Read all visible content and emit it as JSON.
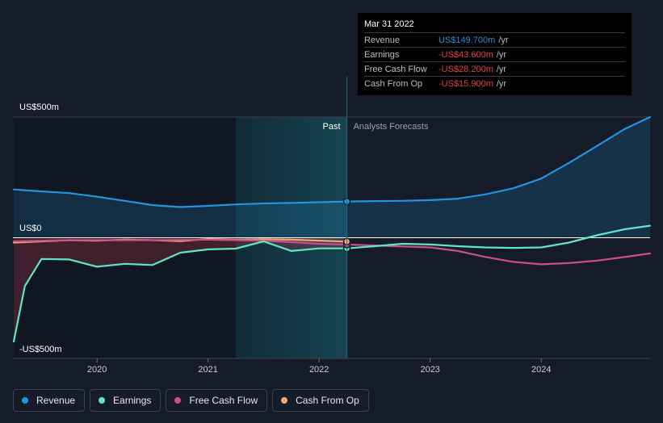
{
  "tooltip": {
    "date": "Mar 31 2022",
    "rows": [
      {
        "label": "Revenue",
        "value": "US$149.700m",
        "unit": "/yr",
        "color": "#2394df"
      },
      {
        "label": "Earnings",
        "value": "-US$43.600m",
        "unit": "/yr",
        "color": "#e64141"
      },
      {
        "label": "Free Cash Flow",
        "value": "-US$28.200m",
        "unit": "/yr",
        "color": "#e64141"
      },
      {
        "label": "Cash From Op",
        "value": "-US$15.900m",
        "unit": "/yr",
        "color": "#e64141"
      }
    ]
  },
  "legend": [
    {
      "label": "Revenue",
      "color": "#2394df"
    },
    {
      "label": "Earnings",
      "color": "#5ee6c6"
    },
    {
      "label": "Free Cash Flow",
      "color": "#cc4f8c"
    },
    {
      "label": "Cash From Op",
      "color": "#f2a86c"
    }
  ],
  "chart_data": {
    "type": "line",
    "title": "",
    "xlabel": "",
    "ylabel": "US$",
    "xlim": [
      2019.25,
      2024.98
    ],
    "ylim": [
      -500,
      500
    ],
    "y_tick_labels": [
      {
        "value": 500,
        "label": "US$500m"
      },
      {
        "value": 0,
        "label": "US$0"
      },
      {
        "value": -500,
        "label": "-US$500m"
      }
    ],
    "x_ticks": [
      {
        "value": 2020,
        "label": "2020"
      },
      {
        "value": 2021,
        "label": "2021"
      },
      {
        "value": 2022,
        "label": "2022"
      },
      {
        "value": 2023,
        "label": "2023"
      },
      {
        "value": 2024,
        "label": "2024"
      }
    ],
    "past_label": "Past",
    "forecast_label": "Analysts Forecasts",
    "divider_x": 2022.25,
    "highlight_start_x": 2021.25,
    "series": [
      {
        "name": "Revenue",
        "color": "#2394df",
        "fill": true,
        "points": [
          [
            2019.25,
            200
          ],
          [
            2019.5,
            192
          ],
          [
            2019.75,
            185
          ],
          [
            2020.0,
            170
          ],
          [
            2020.25,
            153
          ],
          [
            2020.5,
            135
          ],
          [
            2020.75,
            127
          ],
          [
            2021.0,
            132
          ],
          [
            2021.25,
            138
          ],
          [
            2021.5,
            142
          ],
          [
            2021.75,
            144
          ],
          [
            2022.0,
            147
          ],
          [
            2022.25,
            150
          ],
          [
            2022.5,
            152
          ],
          [
            2022.75,
            153
          ],
          [
            2023.0,
            156
          ],
          [
            2023.25,
            162
          ],
          [
            2023.5,
            180
          ],
          [
            2023.75,
            205
          ],
          [
            2024.0,
            245
          ],
          [
            2024.25,
            310
          ],
          [
            2024.5,
            380
          ],
          [
            2024.75,
            450
          ],
          [
            2024.98,
            500
          ]
        ]
      },
      {
        "name": "Earnings",
        "color": "#5ee6c6",
        "fill": true,
        "points": [
          [
            2019.25,
            -430
          ],
          [
            2019.35,
            -200
          ],
          [
            2019.5,
            -88
          ],
          [
            2019.75,
            -90
          ],
          [
            2020.0,
            -120
          ],
          [
            2020.25,
            -108
          ],
          [
            2020.5,
            -113
          ],
          [
            2020.75,
            -62
          ],
          [
            2021.0,
            -48
          ],
          [
            2021.25,
            -45
          ],
          [
            2021.5,
            -15
          ],
          [
            2021.75,
            -55
          ],
          [
            2022.0,
            -44
          ],
          [
            2022.25,
            -44
          ],
          [
            2022.5,
            -35
          ],
          [
            2022.75,
            -25
          ],
          [
            2023.0,
            -28
          ],
          [
            2023.25,
            -35
          ],
          [
            2023.5,
            -40
          ],
          [
            2023.75,
            -42
          ],
          [
            2024.0,
            -40
          ],
          [
            2024.25,
            -20
          ],
          [
            2024.5,
            10
          ],
          [
            2024.75,
            35
          ],
          [
            2024.98,
            50
          ]
        ]
      },
      {
        "name": "Free Cash Flow",
        "color": "#cc4f8c",
        "fill": false,
        "points": [
          [
            2019.25,
            -15
          ],
          [
            2019.75,
            -10
          ],
          [
            2020.0,
            -10
          ],
          [
            2020.5,
            -10
          ],
          [
            2021.0,
            -8
          ],
          [
            2021.5,
            -12
          ],
          [
            2021.75,
            -18
          ],
          [
            2022.0,
            -25
          ],
          [
            2022.25,
            -28
          ],
          [
            2022.5,
            -32
          ],
          [
            2022.75,
            -36
          ],
          [
            2023.0,
            -40
          ],
          [
            2023.25,
            -55
          ],
          [
            2023.5,
            -80
          ],
          [
            2023.75,
            -100
          ],
          [
            2024.0,
            -110
          ],
          [
            2024.25,
            -105
          ],
          [
            2024.5,
            -95
          ],
          [
            2024.75,
            -80
          ],
          [
            2024.98,
            -65
          ]
        ]
      },
      {
        "name": "Cash From Op",
        "color": "#f2a86c",
        "fill": false,
        "points": [
          [
            2019.25,
            -20
          ],
          [
            2019.5,
            -15
          ],
          [
            2019.75,
            -10
          ],
          [
            2020.0,
            -12
          ],
          [
            2020.25,
            -8
          ],
          [
            2020.5,
            -10
          ],
          [
            2020.75,
            -14
          ],
          [
            2021.0,
            -5
          ],
          [
            2021.25,
            -8
          ],
          [
            2021.5,
            -6
          ],
          [
            2021.75,
            -8
          ],
          [
            2022.0,
            -12
          ],
          [
            2022.25,
            -16
          ]
        ]
      }
    ]
  }
}
